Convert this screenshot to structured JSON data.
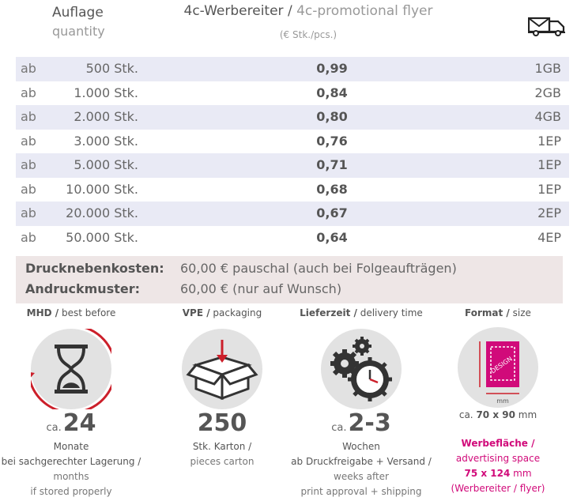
{
  "header": {
    "quantity_de": "Auflage",
    "quantity_en": "quantity",
    "product_de": "4c-Werbereiter /",
    "product_en": "4c-promotional flyer",
    "unit": "(€ Stk./pcs.)",
    "shipping_icon": "truck-mail-icon"
  },
  "price_table": {
    "rows": [
      {
        "prefix": "ab",
        "quantity": "500 Stk.",
        "price": "0,99",
        "shipping": "1GB"
      },
      {
        "prefix": "ab",
        "quantity": "1.000 Stk.",
        "price": "0,84",
        "shipping": "2GB"
      },
      {
        "prefix": "ab",
        "quantity": "2.000 Stk.",
        "price": "0,80",
        "shipping": "4GB"
      },
      {
        "prefix": "ab",
        "quantity": "3.000 Stk.",
        "price": "0,76",
        "shipping": "1EP"
      },
      {
        "prefix": "ab",
        "quantity": "5.000 Stk.",
        "price": "0,71",
        "shipping": "1EP"
      },
      {
        "prefix": "ab",
        "quantity": "10.000 Stk.",
        "price": "0,68",
        "shipping": "1EP"
      },
      {
        "prefix": "ab",
        "quantity": "20.000 Stk.",
        "price": "0,67",
        "shipping": "2EP"
      },
      {
        "prefix": "ab",
        "quantity": "50.000 Stk.",
        "price": "0,64",
        "shipping": "4EP"
      }
    ]
  },
  "extras": {
    "setup_label": "Drucknebenkosten:",
    "setup_value": "60,00 € pauschal (auch bei Folgeaufträgen)",
    "proof_label": "Andruckmuster:",
    "proof_value": "60,00 € (nur auf Wunsch)"
  },
  "info": {
    "mhd": {
      "title_de": "MHD /",
      "title_en": "best before",
      "prefix": "ca.",
      "value": "24",
      "unit": "Monate",
      "line1": "bei sachgerechter Lagerung /",
      "line2": "months",
      "line3": "if stored properly",
      "icon": "hourglass-icon"
    },
    "vpe": {
      "title_de": "VPE /",
      "title_en": "packaging",
      "value": "250",
      "line1": "Stk. Karton /",
      "line2": "pieces carton",
      "icon": "box-icon"
    },
    "delivery": {
      "title_de": "Lieferzeit /",
      "title_en": "delivery time",
      "prefix": "ca.",
      "value": "2-3",
      "line1": "Wochen",
      "line2": "ab Druckfreigabe + Versand /",
      "line3": "weeks after",
      "line4": "print approval + shipping",
      "icon": "gears-clock-icon"
    },
    "format": {
      "title_de": "Format /",
      "title_en": "size",
      "prefix": "ca.",
      "size": "70 x 90",
      "unit": "mm",
      "icon_unit": "mm",
      "icon_text": "DESIGN",
      "area_de": "Werbefläche /",
      "area_en": "advertising space",
      "area_size": "75 x 124",
      "area_unit": "mm",
      "area_note": "(Werbereiter / flyer)",
      "accent_color": "#d10a7a",
      "icon": "format-size-icon"
    }
  }
}
